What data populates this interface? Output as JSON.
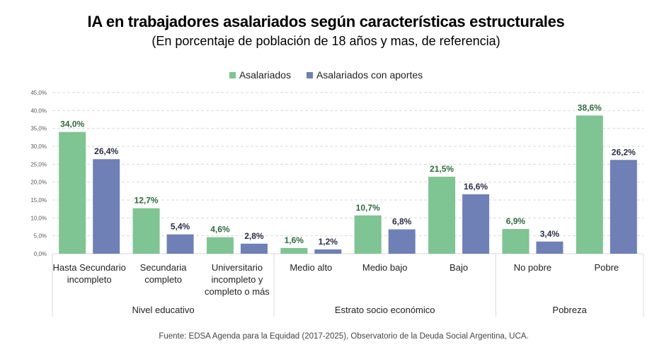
{
  "chart_data": {
    "type": "bar",
    "title": "IA en trabajadores asalariados según características estructurales",
    "subtitle": "(En porcentaje de población de 18 años y mas, de referencia)",
    "xlabel": "",
    "ylabel": "",
    "ylim": [
      0,
      45
    ],
    "yticks": [
      0,
      5,
      10,
      15,
      20,
      25,
      30,
      35,
      40,
      45
    ],
    "ytick_labels": [
      "0,0%",
      "5,0%",
      "10,0%",
      "15,0%",
      "20,0%",
      "25,0%",
      "30,0%",
      "35,0%",
      "40,0%",
      "45,0%"
    ],
    "grid": true,
    "legend_position": "top-center",
    "categories": [
      "Hasta Secundario incompleto",
      "Secundaria completo",
      "Universitario incompleto y completo o más",
      "Medio alto",
      "Medio bajo",
      "Bajo",
      "No pobre",
      "Pobre"
    ],
    "category_lines": [
      [
        "Hasta Secundario",
        "incompleto"
      ],
      [
        "Secundaria",
        "completo"
      ],
      [
        "Universitario",
        "incompleto y",
        "completo o más"
      ],
      [
        "Medio alto"
      ],
      [
        "Medio bajo"
      ],
      [
        "Bajo"
      ],
      [
        "No pobre"
      ],
      [
        "Pobre"
      ]
    ],
    "groups": [
      {
        "label": "Nivel educativo",
        "count": 3
      },
      {
        "label": "Estrato socio económico",
        "count": 3
      },
      {
        "label": "Pobreza",
        "count": 2
      }
    ],
    "series": [
      {
        "name": "Asalariados",
        "color": "#7fc493",
        "label_color": "#2e6b3c",
        "values": [
          34.0,
          12.7,
          4.6,
          1.6,
          10.7,
          21.5,
          6.9,
          38.6
        ],
        "labels": [
          "34,0%",
          "12,7%",
          "4,6%",
          "1,6%",
          "10,7%",
          "21,5%",
          "6,9%",
          "38,6%"
        ]
      },
      {
        "name": "Asalariados con aportes",
        "color": "#6f80b7",
        "label_color": "#2b2f4a",
        "values": [
          26.4,
          5.4,
          2.8,
          1.2,
          6.8,
          16.6,
          3.4,
          26.2
        ],
        "labels": [
          "26,4%",
          "5,4%",
          "2,8%",
          "1,2%",
          "6,8%",
          "16,6%",
          "3,4%",
          "26,2%"
        ]
      }
    ]
  },
  "source": "Fuente: EDSA Agenda para la Equidad (2017-2025), Observatorio de la Deuda Social Argentina, UCA."
}
